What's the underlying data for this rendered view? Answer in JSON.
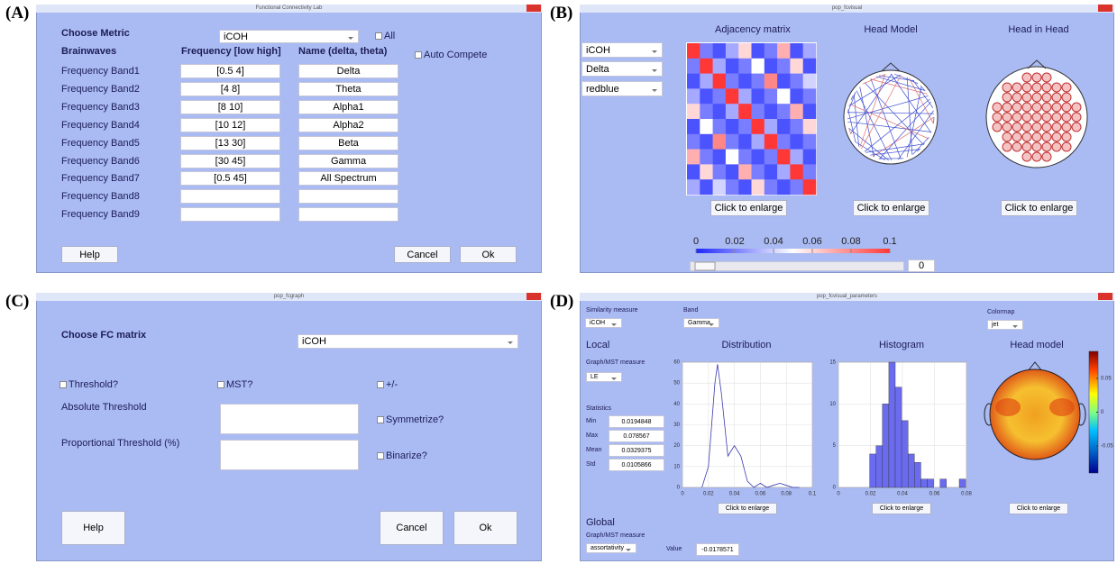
{
  "panel_a": {
    "label": "(A)",
    "title": "Functional Connectivity Lab",
    "choose_metric": "Choose Metric",
    "metric": "iCOH",
    "all": "All",
    "col_brainwaves": "Brainwaves",
    "col_frequency": "Frequency [low high]",
    "col_name": "Name (delta, theta)",
    "auto_complete": "Auto Compete",
    "bands": [
      {
        "label": "Frequency Band1",
        "frequency": "[0.5 4]",
        "name": "Delta"
      },
      {
        "label": "Frequency Band2",
        "frequency": "[4 8]",
        "name": "Theta"
      },
      {
        "label": "Frequency Band3",
        "frequency": "[8 10]",
        "name": "Alpha1"
      },
      {
        "label": "Frequency Band4",
        "frequency": "[10 12]",
        "name": "Alpha2"
      },
      {
        "label": "Frequency Band5",
        "frequency": "[13 30]",
        "name": "Beta"
      },
      {
        "label": "Frequency Band6",
        "frequency": "[30 45]",
        "name": "Gamma"
      },
      {
        "label": "Frequency Band7",
        "frequency": "[0.5 45]",
        "name": "All Spectrum"
      },
      {
        "label": "Frequency Band8"
      },
      {
        "label": "Frequency Band9"
      }
    ],
    "help": "Help",
    "cancel": "Cancel",
    "ok": "Ok"
  },
  "panel_b": {
    "label": "(B)",
    "title": "pop_fcvisual",
    "dropdowns": [
      "iCOH",
      "Delta",
      "redblue"
    ],
    "views": [
      {
        "title": "Adjacency matrix",
        "button": "Click to enlarge"
      },
      {
        "title": "Head Model",
        "button": "Click to enlarge"
      },
      {
        "title": "Head in Head",
        "button": "Click to enlarge"
      }
    ],
    "matrix": [
      [
        0.1,
        0.02,
        0.01,
        0.03,
        0.06,
        0.01,
        0.02,
        0.07,
        0.01,
        0.03
      ],
      [
        0.02,
        0.1,
        0.03,
        0.01,
        0.02,
        0.05,
        0.01,
        0.02,
        0.06,
        0.01
      ],
      [
        0.01,
        0.03,
        0.1,
        0.02,
        0.01,
        0.02,
        0.08,
        0.01,
        0.02,
        0.04
      ],
      [
        0.03,
        0.01,
        0.02,
        0.1,
        0.03,
        0.01,
        0.02,
        0.05,
        0.01,
        0.02
      ],
      [
        0.06,
        0.02,
        0.01,
        0.03,
        0.1,
        0.02,
        0.01,
        0.02,
        0.07,
        0.01
      ],
      [
        0.01,
        0.05,
        0.02,
        0.01,
        0.02,
        0.1,
        0.03,
        0.01,
        0.02,
        0.06
      ],
      [
        0.02,
        0.01,
        0.08,
        0.02,
        0.01,
        0.03,
        0.1,
        0.02,
        0.01,
        0.02
      ],
      [
        0.07,
        0.02,
        0.01,
        0.05,
        0.02,
        0.01,
        0.02,
        0.1,
        0.03,
        0.01
      ],
      [
        0.01,
        0.06,
        0.02,
        0.01,
        0.07,
        0.02,
        0.01,
        0.03,
        0.1,
        0.02
      ],
      [
        0.03,
        0.01,
        0.04,
        0.02,
        0.01,
        0.06,
        0.02,
        0.01,
        0.02,
        0.1
      ]
    ],
    "colorbar_lim": [
      0,
      0.1
    ],
    "colorbar_ticks": [
      0,
      0.02,
      0.04,
      0.06,
      0.08,
      0.1
    ],
    "slider_value": 0
  },
  "panel_c": {
    "label": "(C)",
    "title": "pop_fcgraph",
    "choose": "Choose FC matrix",
    "matrix": "iCOH",
    "threshold": "Threshold?",
    "mst": "MST?",
    "plusminus": "+/-",
    "absolute": "Absolute Threshold",
    "proportional": "Proportional Threshold (%)",
    "symmetrize": "Symmetrize?",
    "binarize": "Binarize?",
    "help": "Help",
    "cancel": "Cancel",
    "ok": "Ok"
  },
  "panel_d": {
    "label": "(D)",
    "title": "pop_fcvisual_parameters",
    "similarity_label": "Similarity measure",
    "similarity": "iCOH",
    "band_label": "Band",
    "band": "Gamma",
    "colormap_label": "Colormap",
    "colormap": "jet",
    "local": "Local",
    "graph_label": "Graph/MST measure",
    "graph": "LE",
    "statistics": "Statistics",
    "stats": [
      {
        "name": "Min",
        "value": 0.0194848
      },
      {
        "name": "Max",
        "value": 0.078567
      },
      {
        "name": "Mean",
        "value": 0.0329375
      },
      {
        "name": "Std",
        "value": 0.0105866
      }
    ],
    "distribution": {
      "type": "line",
      "title": "Distribution",
      "xlim": [
        0,
        0.1
      ],
      "xticks": [
        0,
        0.02,
        0.04,
        0.06,
        0.08,
        0.1
      ],
      "ylim": [
        0,
        60
      ],
      "yticks": [
        0,
        10,
        20,
        30,
        40,
        50,
        60
      ],
      "grid": true,
      "color": "#3a3ab0",
      "x": [
        0.015,
        0.02,
        0.025,
        0.027,
        0.03,
        0.035,
        0.04,
        0.045,
        0.05,
        0.055,
        0.06,
        0.065,
        0.07,
        0.075,
        0.08,
        0.085,
        0.09
      ],
      "y": [
        0,
        10,
        50,
        59,
        45,
        15,
        20,
        15,
        3,
        0,
        2,
        0,
        1,
        2,
        1,
        0,
        0
      ]
    },
    "histogram": {
      "type": "histogram",
      "title": "Histogram",
      "xlim": [
        0,
        0.08
      ],
      "xticks": [
        0,
        0.02,
        0.04,
        0.06,
        0.08
      ],
      "ylim": [
        0,
        15
      ],
      "yticks": [
        0,
        5,
        10,
        15
      ],
      "grid": true,
      "color": "#6b6bef",
      "bins": [
        0.0195,
        0.0235,
        0.0275,
        0.0315,
        0.0355,
        0.0395,
        0.0435,
        0.0475,
        0.0515,
        0.0555,
        0.0595,
        0.0635,
        0.0675,
        0.0715,
        0.0755,
        0.0795
      ],
      "counts": [
        4,
        5,
        10,
        15,
        12,
        8,
        4,
        3,
        1,
        1,
        0,
        1,
        0,
        0,
        1
      ]
    },
    "head_title": "Head model",
    "head_colorbar_lim": [
      -0.09,
      0.09
    ],
    "head_colorbar_ticks": [
      0.05,
      0,
      -0.05
    ],
    "buttons": [
      "Click to enlarge",
      "Click to enlarge",
      "Click to enlarge"
    ],
    "global": "Global",
    "global_graph_label": "Graph/MST measure",
    "global_measure": "assortativity",
    "value_label": "Value",
    "value": -0.0178571
  }
}
